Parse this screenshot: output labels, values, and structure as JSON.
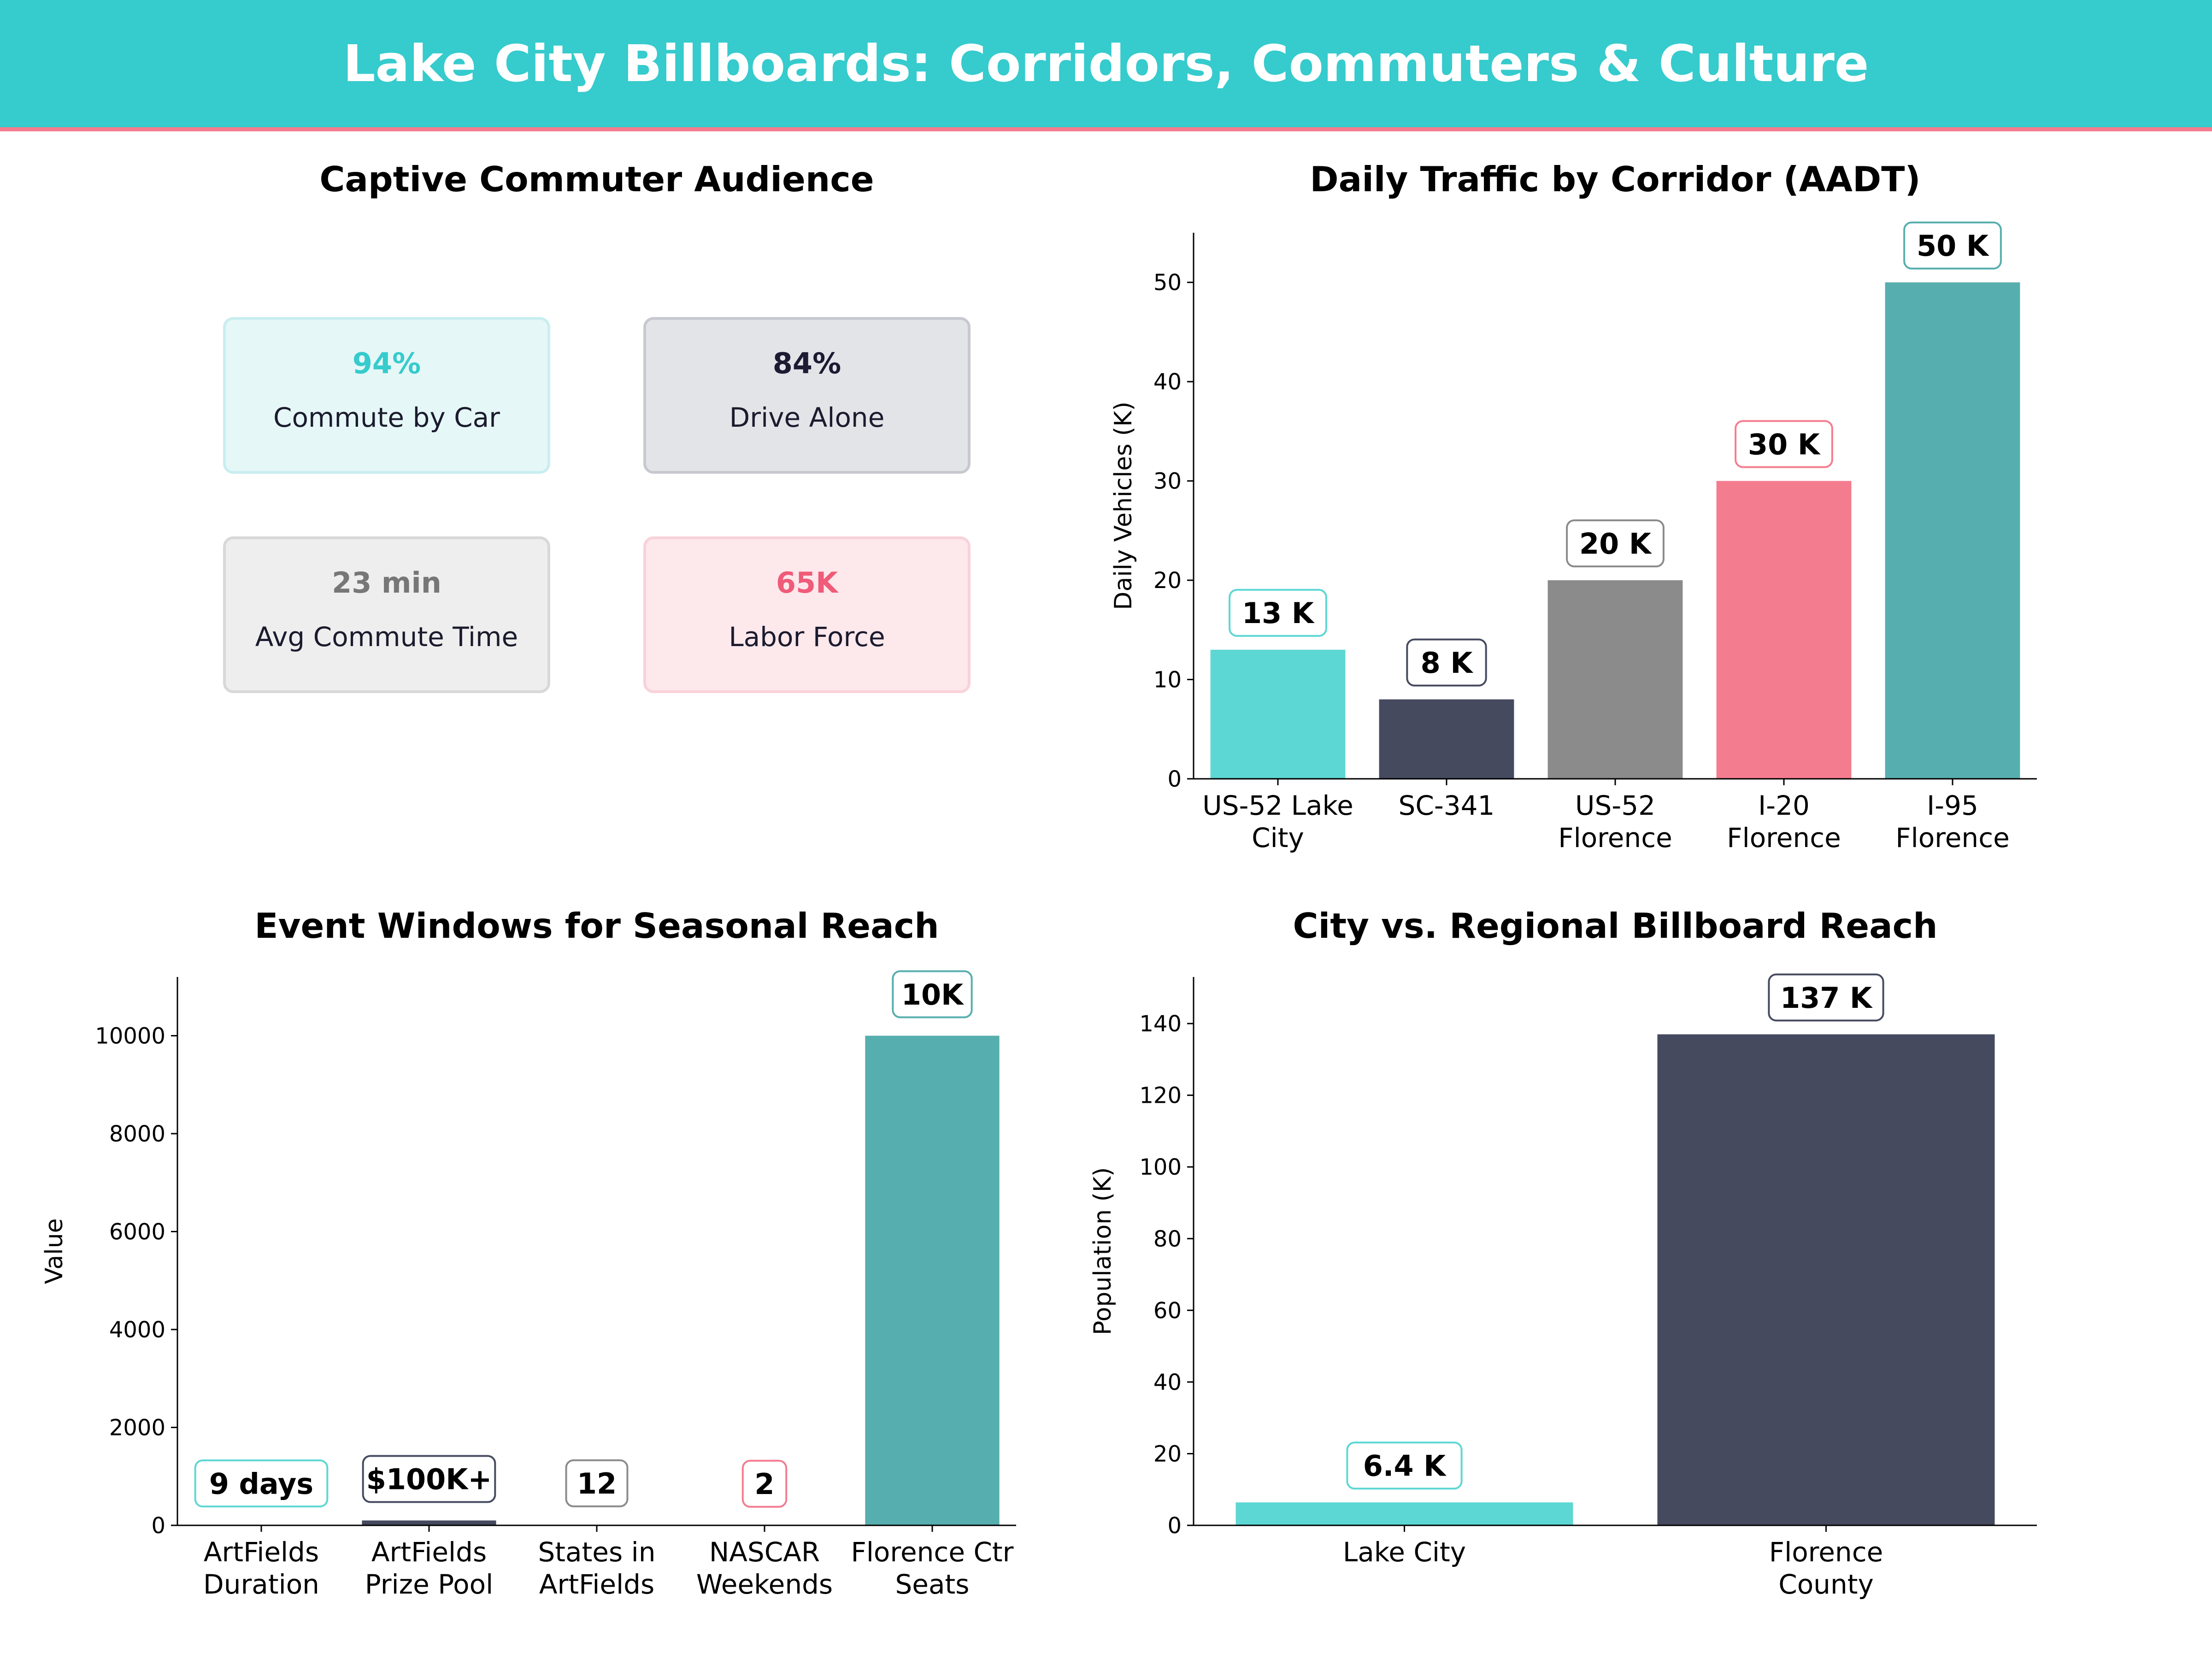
{
  "page": {
    "title": "Lake City Billboards: Corridors, Commuters & Culture",
    "header_color": "#36cbcd",
    "accent_line_color": "#f47c8f"
  },
  "kpi_panel": {
    "title": "Captive Commuter Audience",
    "cards": [
      {
        "value": "94%",
        "label": "Commute by Car",
        "value_color": "#36cbcd",
        "bg": "#e6f7f7",
        "border": "#c9eef0"
      },
      {
        "value": "84%",
        "label": "Drive Alone",
        "value_color": "#1b1b33",
        "bg": "#e3e4e8",
        "border": "#c8c9d0"
      },
      {
        "value": "23 min",
        "label": "Avg Commute Time",
        "value_color": "#777777",
        "bg": "#eeeeee",
        "border": "#d8d8d8"
      },
      {
        "value": "65K",
        "label": "Labor Force",
        "value_color": "#ef5b78",
        "bg": "#fde8ec",
        "border": "#f8d2da"
      }
    ]
  },
  "chart_data": [
    {
      "id": "traffic",
      "type": "bar",
      "title": "Daily Traffic by Corridor (AADT)",
      "ylabel": "Daily Vehicles (K)",
      "xlabel": "",
      "categories": [
        "US-52 Lake\nCity",
        "SC-341",
        "US-52\nFlorence",
        "I-20\nFlorence",
        "I-95\nFlorence"
      ],
      "values": [
        13,
        8,
        20,
        30,
        50
      ],
      "labels": [
        "13 K",
        "8 K",
        "20 K",
        "30 K",
        "50 K"
      ],
      "colors": [
        "#5dd7d4",
        "#454a5f",
        "#8b8b8b",
        "#f47c8f",
        "#57aeae"
      ],
      "ylim": [
        0,
        55
      ],
      "yticks": [
        0,
        10,
        20,
        30,
        40,
        50
      ],
      "grid": false
    },
    {
      "id": "events",
      "type": "bar",
      "title": "Event Windows for Seasonal Reach",
      "ylabel": "Value",
      "xlabel": "",
      "categories": [
        "ArtFields\nDuration",
        "ArtFields\nPrize Pool",
        "States in\nArtFields",
        "NASCAR\nWeekends",
        "Florence Ctr\nSeats"
      ],
      "values": [
        9,
        100,
        12,
        2,
        10000
      ],
      "labels": [
        "9 days",
        "$100K+",
        "12",
        "2",
        "10K"
      ],
      "colors": [
        "#5dd7d4",
        "#454a5f",
        "#8b8b8b",
        "#f47c8f",
        "#57aeae"
      ],
      "ylim": [
        0,
        11200
      ],
      "yticks": [
        0,
        2000,
        4000,
        6000,
        8000,
        10000
      ],
      "grid": false
    },
    {
      "id": "reach",
      "type": "bar",
      "title": "City vs. Regional Billboard Reach",
      "ylabel": "Population (K)",
      "xlabel": "",
      "categories": [
        "Lake City",
        "Florence\nCounty"
      ],
      "values": [
        6.4,
        137
      ],
      "labels": [
        "6.4 K",
        "137 K"
      ],
      "colors": [
        "#5dd7d4",
        "#454a5f"
      ],
      "ylim": [
        0,
        153
      ],
      "yticks": [
        0,
        20,
        40,
        60,
        80,
        100,
        120,
        140
      ],
      "grid": false
    }
  ]
}
